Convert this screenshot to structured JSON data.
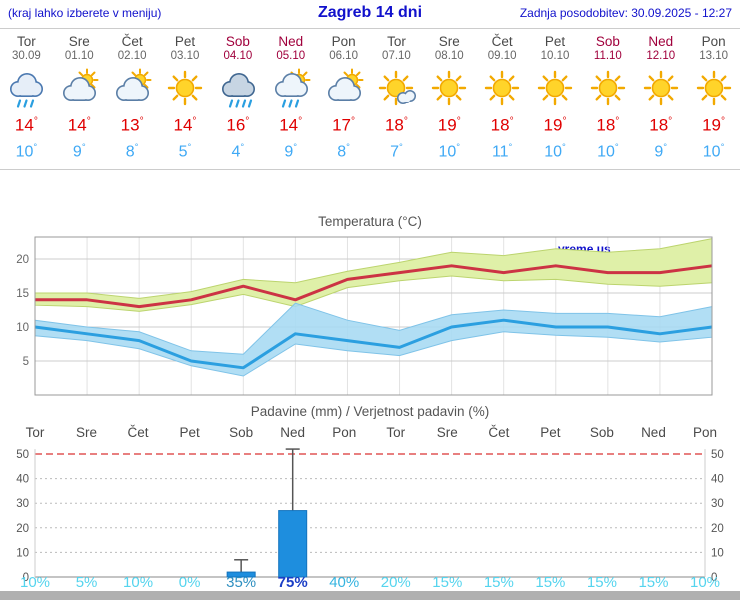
{
  "header": {
    "menu_note": "(kraj lahko izberete v meniju)",
    "title": "Zagreb 14 dni",
    "last_update": "Zadnja posodobitev: 30.09.2025 - 12:27"
  },
  "misc": {
    "degree": "°"
  },
  "colors": {
    "header_blue": "#1111cc",
    "weekday": "#4a4a4a",
    "weekend": "#a0003c",
    "tmax_red": "#e00000",
    "tmin_blue": "#3fa9f5",
    "bar_blue": "#1e8ede"
  },
  "forecast_days": [
    {
      "name": "Tor",
      "date": "30.09",
      "weekend": false,
      "icon": "rain-cloud",
      "tmax": 14,
      "tmin": 10
    },
    {
      "name": "Sre",
      "date": "01.10",
      "weekend": false,
      "icon": "partly-cloudy",
      "tmax": 14,
      "tmin": 9
    },
    {
      "name": "Čet",
      "date": "02.10",
      "weekend": false,
      "icon": "partly-cloudy",
      "tmax": 13,
      "tmin": 8
    },
    {
      "name": "Pet",
      "date": "03.10",
      "weekend": false,
      "icon": "sunny",
      "tmax": 14,
      "tmin": 5
    },
    {
      "name": "Sob",
      "date": "04.10",
      "weekend": true,
      "icon": "rain-cloud-heavy",
      "tmax": 16,
      "tmin": 4
    },
    {
      "name": "Ned",
      "date": "05.10",
      "weekend": true,
      "icon": "sun-rain",
      "tmax": 14,
      "tmin": 9
    },
    {
      "name": "Pon",
      "date": "06.10",
      "weekend": false,
      "icon": "partly-cloudy",
      "tmax": 17,
      "tmin": 8
    },
    {
      "name": "Tor",
      "date": "07.10",
      "weekend": false,
      "icon": "mostly-sunny",
      "tmax": 18,
      "tmin": 7
    },
    {
      "name": "Sre",
      "date": "08.10",
      "weekend": false,
      "icon": "sunny",
      "tmax": 19,
      "tmin": 10
    },
    {
      "name": "Čet",
      "date": "09.10",
      "weekend": false,
      "icon": "sunny",
      "tmax": 18,
      "tmin": 11
    },
    {
      "name": "Pet",
      "date": "10.10",
      "weekend": false,
      "icon": "sunny",
      "tmax": 19,
      "tmin": 10
    },
    {
      "name": "Sob",
      "date": "11.10",
      "weekend": true,
      "icon": "sunny",
      "tmax": 18,
      "tmin": 10
    },
    {
      "name": "Ned",
      "date": "12.10",
      "weekend": true,
      "icon": "sunny",
      "tmax": 18,
      "tmin": 9
    },
    {
      "name": "Pon",
      "date": "13.10",
      "weekend": false,
      "icon": "sunny",
      "tmax": 19,
      "tmin": 10
    }
  ],
  "chart_data": [
    {
      "type": "line",
      "title": "Temperatura (°C)",
      "watermark": "vreme.us",
      "categories": [
        "Tor 30.09",
        "Sre 01.10",
        "Čet 02.10",
        "Pet 03.10",
        "Sob 04.10",
        "Ned 05.10",
        "Pon 06.10",
        "Tor 07.10",
        "Sre 08.10",
        "Čet 09.10",
        "Pet 10.10",
        "Sob 11.10",
        "Ned 12.10",
        "Pon 13.10"
      ],
      "ylabel": "°C",
      "ylim": [
        0,
        23.3
      ],
      "yticks": [
        5,
        10,
        15,
        20
      ],
      "grid": true,
      "series": [
        {
          "name": "tmax",
          "color": "#cc3344",
          "values": [
            14,
            14,
            13,
            14,
            16,
            14,
            17,
            18,
            19,
            18,
            19,
            18,
            18,
            19
          ]
        },
        {
          "name": "tmin",
          "color": "#2b9fe0",
          "values": [
            10,
            9,
            8,
            5,
            4,
            9,
            8,
            7,
            10,
            11,
            10,
            10,
            9,
            10
          ]
        },
        {
          "name": "tmax_range_upper",
          "color": "#dff0a8",
          "values": [
            15,
            15,
            14.2,
            15.2,
            17,
            16.5,
            18.2,
            19.5,
            21,
            20.5,
            21.5,
            21,
            21.5,
            23
          ]
        },
        {
          "name": "tmax_range_lower",
          "color": "#dff0a8",
          "values": [
            13.2,
            13,
            12.3,
            13.3,
            14.8,
            13,
            15.8,
            16.8,
            17.5,
            16.8,
            17,
            16.3,
            16,
            16.5
          ]
        },
        {
          "name": "tmin_range_upper",
          "color": "#a6d9f3",
          "values": [
            11,
            10,
            9.3,
            6.5,
            6,
            13.5,
            11,
            9.5,
            11.8,
            12.5,
            12,
            12,
            11.5,
            13
          ]
        },
        {
          "name": "tmin_range_lower",
          "color": "#a6d9f3",
          "values": [
            8.7,
            8,
            6.8,
            4.3,
            2.8,
            7.5,
            6.5,
            5.8,
            8,
            9.3,
            8.8,
            8.5,
            7.8,
            8.5
          ]
        }
      ]
    },
    {
      "type": "bar",
      "title": "Padavine (mm) / Verjetnost padavin (%)",
      "categories": [
        "Tor",
        "Sre",
        "Čet",
        "Pet",
        "Sob",
        "Ned",
        "Pon",
        "Tor",
        "Sre",
        "Čet",
        "Pet",
        "Sob",
        "Ned",
        "Pon"
      ],
      "weekend_flags": [
        false,
        false,
        false,
        false,
        true,
        true,
        false,
        false,
        false,
        false,
        false,
        true,
        true,
        false
      ],
      "ylim": [
        0,
        52
      ],
      "yticks": [
        0,
        10,
        20,
        30,
        40,
        50
      ],
      "precip_mm": [
        0,
        0,
        0,
        0,
        2,
        27,
        0,
        0,
        0,
        0,
        0,
        0,
        0,
        0
      ],
      "precip_max_mm": [
        0,
        0,
        0,
        0,
        7,
        52,
        0,
        0,
        0,
        0,
        0,
        0,
        0,
        0
      ],
      "probabilities": [
        {
          "text": "10%",
          "color": "#55d4ee",
          "bold": false
        },
        {
          "text": "5%",
          "color": "#55d4ee",
          "bold": false
        },
        {
          "text": "10%",
          "color": "#55d4ee",
          "bold": false
        },
        {
          "text": "0%",
          "color": "#55d4ee",
          "bold": false
        },
        {
          "text": "35%",
          "color": "#2e8fc0",
          "bold": false
        },
        {
          "text": "75%",
          "color": "#1b3ec6",
          "bold": true
        },
        {
          "text": "40%",
          "color": "#35b4e0",
          "bold": false
        },
        {
          "text": "20%",
          "color": "#55d4ee",
          "bold": false
        },
        {
          "text": "15%",
          "color": "#55d4ee",
          "bold": false
        },
        {
          "text": "15%",
          "color": "#55d4ee",
          "bold": false
        },
        {
          "text": "15%",
          "color": "#55d4ee",
          "bold": false
        },
        {
          "text": "15%",
          "color": "#55d4ee",
          "bold": false
        },
        {
          "text": "15%",
          "color": "#55d4ee",
          "bold": false
        },
        {
          "text": "10%",
          "color": "#55d4ee",
          "bold": false
        }
      ]
    }
  ]
}
